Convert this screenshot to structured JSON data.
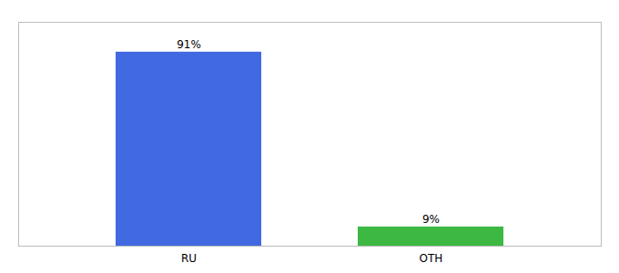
{
  "chart_data": {
    "type": "bar",
    "categories": [
      "RU",
      "OTH"
    ],
    "values": [
      91,
      9
    ],
    "value_labels": [
      "91%",
      "9%"
    ],
    "colors": [
      "#4169e1",
      "#3cb843"
    ],
    "ylim": [
      0,
      105
    ],
    "data_labels": true,
    "tick_labels": "x",
    "grid": false
  }
}
